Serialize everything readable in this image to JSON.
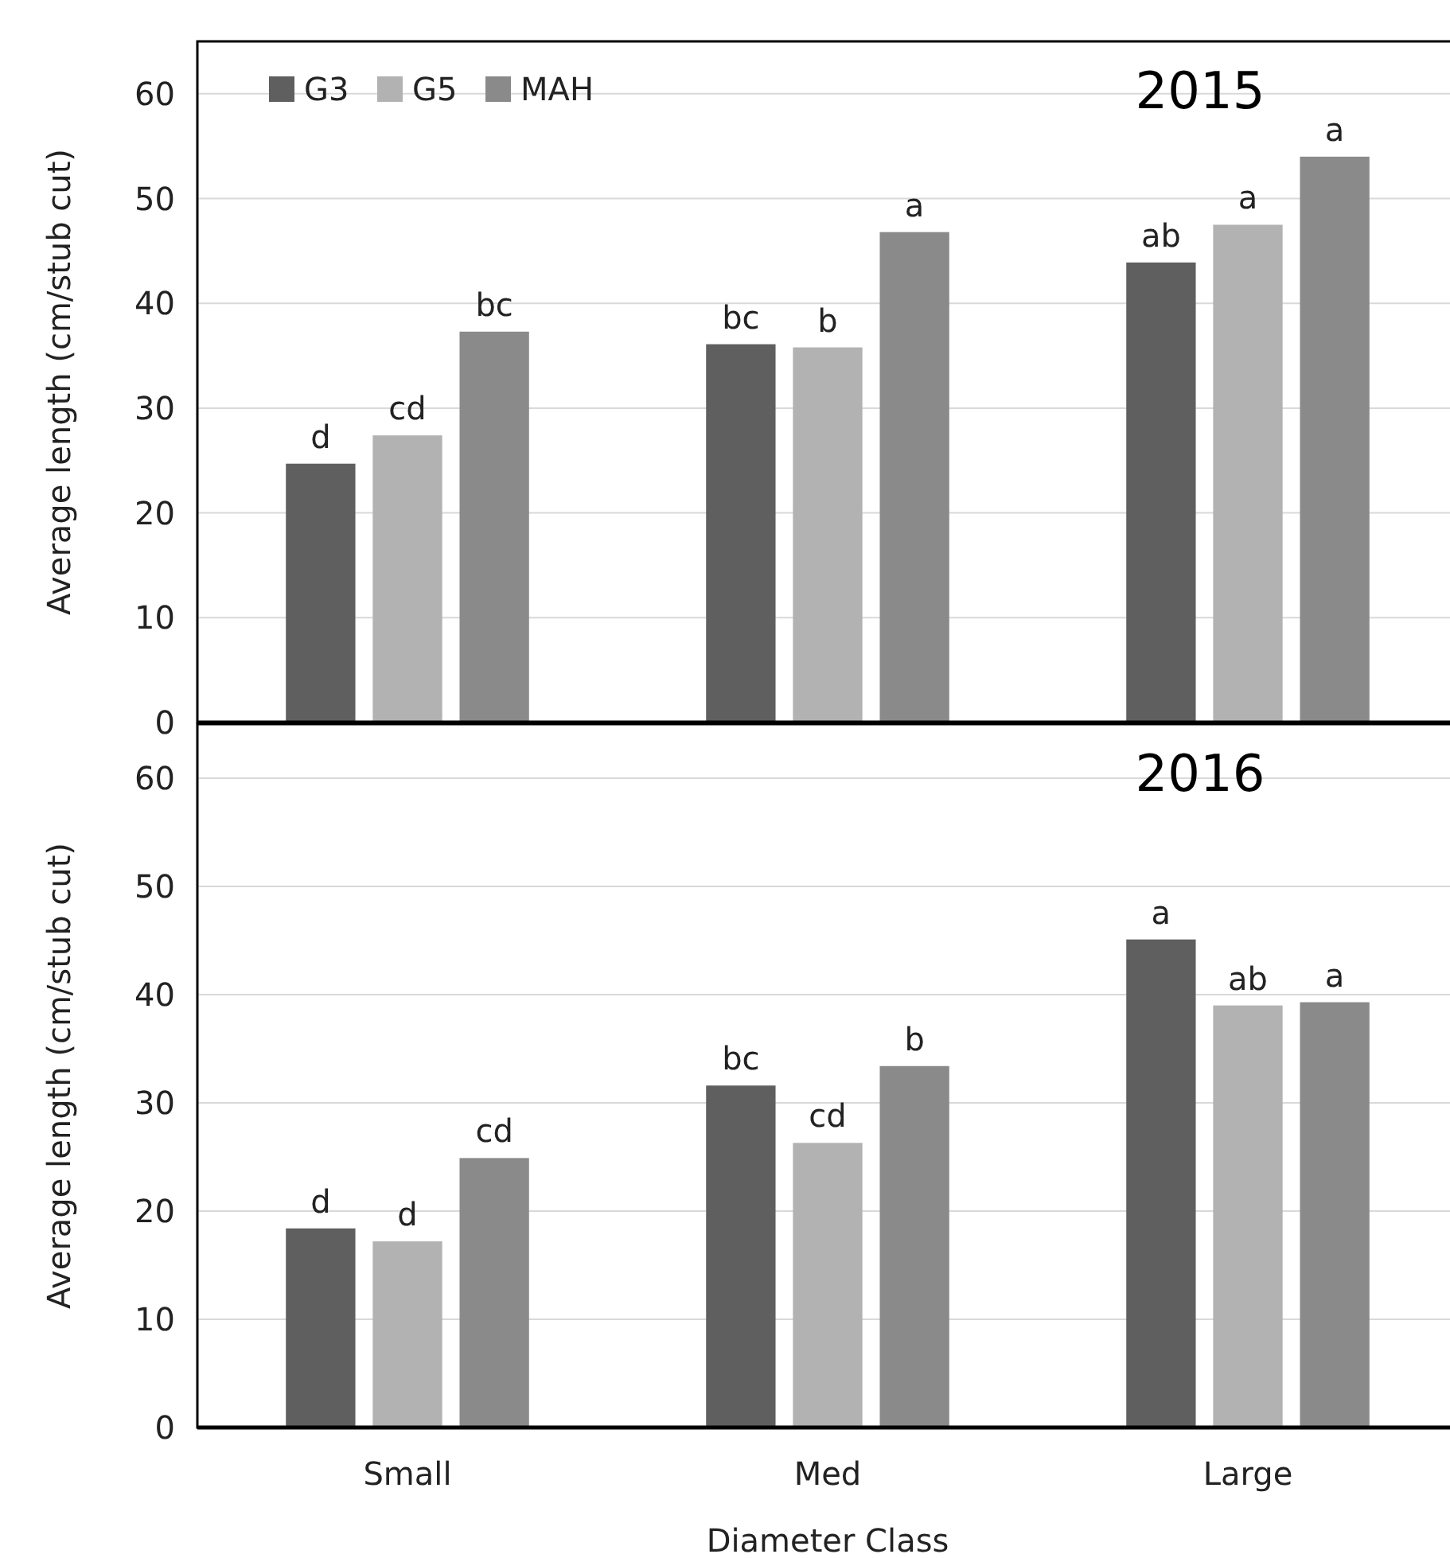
{
  "chart_data": [
    {
      "type": "bar",
      "title": "2015",
      "ylabel": "Average length (cm/stub cut)",
      "categories": [
        "Small",
        "Med",
        "Large"
      ],
      "ylim": [
        0,
        65
      ],
      "yticks": [
        0,
        10,
        20,
        30,
        40,
        50,
        60
      ],
      "grid": "y",
      "legend": "top left",
      "tick_labels": "y",
      "series": [
        {
          "name": "G3",
          "color": "#5f5f5f",
          "values": [
            24.7,
            36.1,
            43.9
          ],
          "value_labels": [
            "d",
            "bc",
            "ab"
          ]
        },
        {
          "name": "G5",
          "color": "#b2b2b2",
          "values": [
            27.4,
            35.8,
            47.5
          ],
          "value_labels": [
            "cd",
            "b",
            "a"
          ]
        },
        {
          "name": "MAH",
          "color": "#8a8a8a",
          "values": [
            37.3,
            46.8,
            54.0
          ],
          "value_labels": [
            "bc",
            "a",
            "a"
          ]
        }
      ]
    },
    {
      "type": "bar",
      "title": "2016",
      "ylabel": "Average length (cm/stub cut)",
      "xlabel": "Diameter Class",
      "categories": [
        "Small",
        "Med",
        "Large"
      ],
      "ylim": [
        0,
        65
      ],
      "yticks": [
        0,
        10,
        20,
        30,
        40,
        50,
        60
      ],
      "grid": "y",
      "series": [
        {
          "color": "#5f5f5f",
          "values": [
            18.4,
            31.6,
            45.1
          ],
          "value_labels": [
            "d",
            "bc",
            "a"
          ]
        },
        {
          "color": "#b2b2b2",
          "values": [
            17.2,
            26.3,
            39.0
          ],
          "value_labels": [
            "d",
            "cd",
            "ab"
          ]
        },
        {
          "color": "#8a8a8a",
          "values": [
            24.9,
            33.4,
            39.3
          ],
          "value_labels": [
            "cd",
            "b",
            "a"
          ]
        }
      ]
    }
  ]
}
